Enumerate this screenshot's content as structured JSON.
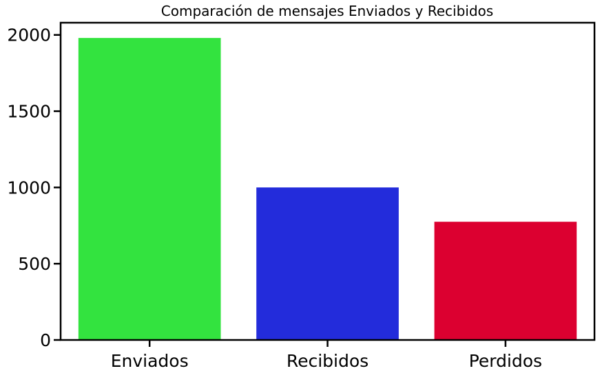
{
  "chart_data": {
    "type": "bar",
    "title": "Comparación de mensajes Enviados y Recibidos",
    "categories": [
      "Enviados",
      "Recibidos",
      "Perdidos"
    ],
    "values": [
      1980,
      1000,
      775
    ],
    "ylim": [
      0,
      2080
    ],
    "yticks": [
      0,
      500,
      1000,
      1500,
      2000
    ],
    "ytick_labels": [
      "0",
      "500",
      "1000",
      "1500",
      "2000"
    ],
    "colors": [
      "#33e33f",
      "#232cdb",
      "#dc0030"
    ],
    "xlabel": "",
    "ylabel": "",
    "grid": false,
    "legend": "none"
  }
}
